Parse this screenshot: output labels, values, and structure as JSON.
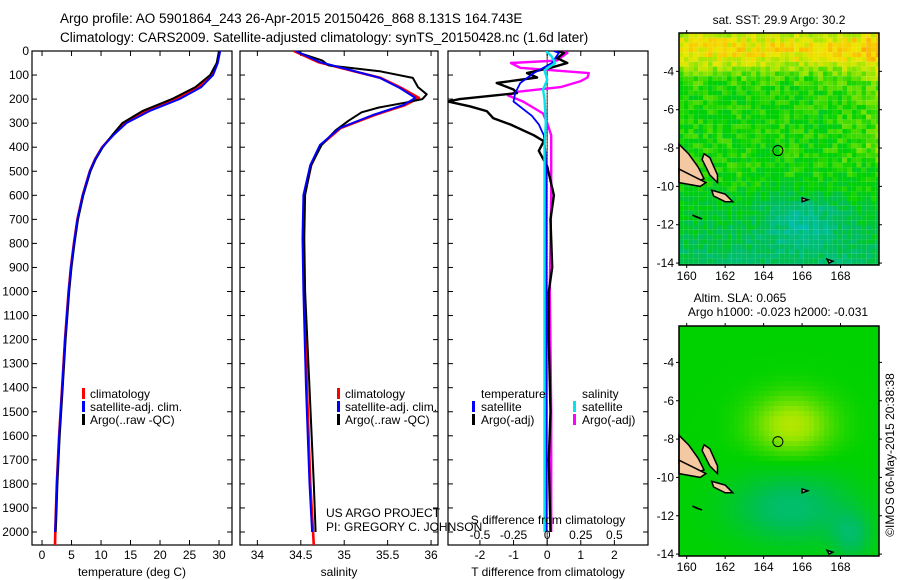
{
  "header": {
    "line1": "Argo profile: AO 5901864_243 26-Apr-2015 20150426_868 8.131S 164.743E",
    "line2": "Climatology: CARS2009. Satellite-adjusted climatology: synTS_20150428.nc (1.6d later)"
  },
  "credits": {
    "project": "US ARGO PROJECT",
    "pi": "PI: GREGORY C. JOHNSON",
    "timestamp": "©IMOS 06-May-2015 20:38:38"
  },
  "colors": {
    "climatology": "#ff0000",
    "satellite": "#0000ff",
    "argo": "#000000",
    "s_satellite": "#00e5ee",
    "s_argo": "#ff00ff",
    "land": "#f4c8a0"
  },
  "chart_data": [
    {
      "type": "line",
      "id": "temperature",
      "xlabel": "temperature (deg C)",
      "ylabel": "",
      "xlim": [
        -1.7,
        32.2
      ],
      "ylim": [
        2055,
        0
      ],
      "xticks": [
        0,
        5,
        10,
        15,
        20,
        25,
        30
      ],
      "yticks": [
        0,
        100,
        200,
        300,
        400,
        500,
        600,
        700,
        800,
        900,
        1000,
        1100,
        1200,
        1300,
        1400,
        1500,
        1600,
        1700,
        1800,
        1900,
        2000
      ],
      "legend": [
        "climatology",
        "satellite-adj. clim.",
        "Argo(..raw -QC)"
      ],
      "series": [
        {
          "name": "climatology",
          "color": "#ff0000",
          "depth": [
            0,
            50,
            100,
            150,
            200,
            250,
            300,
            350,
            400,
            450,
            500,
            600,
            700,
            800,
            900,
            1000,
            1200,
            1400,
            1600,
            1800,
            1950,
            2055
          ],
          "values": [
            30.1,
            29.7,
            28.8,
            26.6,
            22.8,
            17.6,
            14.0,
            12.0,
            10.2,
            9.0,
            8.1,
            6.9,
            6.0,
            5.4,
            4.9,
            4.5,
            3.9,
            3.4,
            2.9,
            2.5,
            2.3,
            2.2
          ]
        },
        {
          "name": "satellite-adj. clim.",
          "color": "#0000ff",
          "depth": [
            0,
            50,
            100,
            150,
            200,
            250,
            300,
            350,
            400,
            450,
            500,
            600,
            700,
            800,
            900,
            1000,
            1200,
            1400,
            1600,
            1800,
            1950,
            2000
          ],
          "values": [
            30.2,
            29.8,
            29.0,
            27.0,
            23.3,
            18.2,
            14.3,
            12.1,
            10.2,
            9.0,
            8.1,
            6.9,
            6.0,
            5.4,
            4.9,
            4.5,
            3.9,
            3.4,
            2.9,
            2.5,
            2.3,
            2.2
          ]
        },
        {
          "name": "Argo(..raw -QC)",
          "color": "#000000",
          "depth": [
            0,
            50,
            100,
            150,
            200,
            250,
            300,
            350,
            400,
            450,
            500,
            600,
            700,
            800,
            900,
            1000,
            1200,
            1400,
            1600,
            1800,
            1950,
            2000
          ],
          "values": [
            30.0,
            29.6,
            28.5,
            26.0,
            22.0,
            17.0,
            13.6,
            11.9,
            10.3,
            9.1,
            8.2,
            7.0,
            6.1,
            5.5,
            5.0,
            4.6,
            4.0,
            3.5,
            3.0,
            2.6,
            2.4,
            2.3
          ]
        }
      ]
    },
    {
      "type": "line",
      "id": "salinity",
      "xlabel": "salinity",
      "xlim": [
        33.8,
        36.08
      ],
      "ylim": [
        2055,
        0
      ],
      "xticks": [
        34,
        34.5,
        35,
        35.5,
        36
      ],
      "legend": [
        "climatology",
        "satellite-adj. clim.",
        "Argo(..raw -QC)"
      ],
      "series": [
        {
          "name": "climatology",
          "color": "#ff0000",
          "depth": [
            0,
            46,
            87,
            112,
            154,
            195,
            225,
            266,
            320,
            391,
            474,
            599,
            778,
            1000,
            1400,
            1800,
            2055
          ],
          "values": [
            34.42,
            34.7,
            35.14,
            35.42,
            35.66,
            35.86,
            35.7,
            35.35,
            34.96,
            34.73,
            34.62,
            34.54,
            34.53,
            34.54,
            34.57,
            34.61,
            34.65
          ]
        },
        {
          "name": "satellite-adj. clim.",
          "color": "#0000ff",
          "depth": [
            0,
            46,
            87,
            112,
            154,
            195,
            225,
            266,
            320,
            391,
            474,
            599,
            778,
            1000,
            1400,
            1800,
            2000
          ],
          "values": [
            34.44,
            34.72,
            35.15,
            35.41,
            35.64,
            35.82,
            35.68,
            35.33,
            34.95,
            34.72,
            34.61,
            34.53,
            34.52,
            34.53,
            34.56,
            34.6,
            34.63
          ]
        },
        {
          "name": "Argo(..raw -QC)",
          "color": "#000000",
          "depth": [
            0,
            10,
            40,
            60,
            85,
            112,
            150,
            180,
            200,
            215,
            235,
            255,
            290,
            330,
            391,
            474,
            599,
            778,
            1000,
            1400,
            1800,
            2000
          ],
          "values": [
            34.46,
            34.5,
            34.75,
            34.82,
            35.42,
            35.79,
            35.85,
            35.95,
            35.9,
            35.7,
            35.4,
            35.2,
            35.05,
            34.9,
            34.74,
            34.62,
            34.55,
            34.54,
            34.55,
            34.6,
            34.65,
            34.67
          ]
        }
      ]
    },
    {
      "type": "line",
      "id": "differences",
      "xlabel": "T difference from climatology",
      "xlabel2": "S difference from climatology",
      "xlim": [
        -2.95,
        3.0
      ],
      "xticks": [
        -2,
        -1,
        0,
        1,
        2
      ],
      "xticks2": [
        "-0.5",
        "-0.25",
        "0",
        "0.25",
        "0.5"
      ],
      "xticks2_values": [
        -0.5,
        -0.25,
        0,
        0.25,
        0.5
      ],
      "legend_headers": [
        "temperature",
        "salinity"
      ],
      "legend": [
        "satellite",
        "Argo(-adj)",
        "satellite",
        "Argo(-adj)"
      ],
      "series": [
        {
          "name": "T satellite",
          "axis": "T",
          "color": "#0000ff",
          "depth": [
            0,
            8,
            50,
            92,
            133,
            175,
            210,
            270,
            305,
            350,
            420,
            500,
            700,
            1000,
            1500,
            2000
          ],
          "values": [
            0.2,
            0.35,
            0.14,
            -0.4,
            -0.8,
            -0.95,
            -1.0,
            -0.45,
            -0.25,
            -0.1,
            -0.05,
            -0.03,
            -0.03,
            -0.03,
            -0.02,
            -0.02
          ]
        },
        {
          "name": "T Argo(-adj)",
          "axis": "T",
          "color": "#000000",
          "depth": [
            0,
            8,
            30,
            50,
            70,
            92,
            110,
            133,
            160,
            175,
            200,
            210,
            230,
            250,
            280,
            305,
            350,
            375,
            415,
            480,
            600,
            700,
            900,
            1000,
            1200,
            1500,
            1700,
            2000
          ],
          "values": [
            0.3,
            0.5,
            0.3,
            0.6,
            0.1,
            -0.6,
            -0.3,
            -1.5,
            -1.0,
            -0.9,
            -2.6,
            -2.95,
            -2.3,
            -1.8,
            -1.6,
            -1.1,
            -0.4,
            -0.1,
            -0.25,
            0.0,
            0.2,
            0.1,
            0.15,
            0.05,
            0.05,
            0.1,
            0.05,
            0.1
          ]
        },
        {
          "name": "S satellite",
          "axis": "S",
          "color": "#00e5ee",
          "depth": [
            0,
            20,
            50,
            80,
            120,
            160,
            200,
            300,
            400,
            600,
            1000,
            1500,
            2000
          ],
          "values": [
            -0.01,
            0.03,
            0.06,
            -0.02,
            0.0,
            -0.03,
            -0.02,
            -0.01,
            -0.02,
            -0.02,
            -0.02,
            -0.02,
            -0.02
          ]
        },
        {
          "name": "S Argo(-adj)",
          "axis": "S",
          "color": "#ff00ff",
          "depth": [
            0,
            8,
            40,
            50,
            70,
            92,
            110,
            125,
            150,
            170,
            185,
            210,
            260,
            300,
            350,
            600,
            1000,
            1500,
            2000
          ],
          "values": [
            0.1,
            0.15,
            0.07,
            -0.27,
            -0.2,
            0.31,
            0.3,
            0.25,
            0.1,
            -0.23,
            -0.29,
            -0.18,
            -0.03,
            0.0,
            0.03,
            0.03,
            0.02,
            0.03,
            0.03
          ]
        }
      ]
    },
    {
      "type": "heatmap",
      "id": "sst-map",
      "title": "sat. SST: 29.9 Argo: 30.2",
      "xlim": [
        159.6,
        170.0
      ],
      "ylim": [
        -14.1,
        -2.0
      ],
      "xticks": [
        160,
        162,
        164,
        166,
        168
      ],
      "yticks": [
        -4,
        -6,
        -8,
        -10,
        -12,
        -14
      ],
      "argo_position": [
        164.743,
        -8.131
      ]
    },
    {
      "type": "heatmap",
      "id": "sla-map",
      "title": "Altim. SLA: 0.065",
      "subtitle": "Argo h1000: -0.023 h2000: -0.031",
      "xlim": [
        159.6,
        170.0
      ],
      "ylim": [
        -14.1,
        -2.1
      ],
      "xticks": [
        160,
        162,
        164,
        166,
        168
      ],
      "yticks": [
        -4,
        -6,
        -8,
        -10,
        -12,
        -14
      ],
      "argo_position": [
        164.743,
        -8.131
      ]
    }
  ]
}
